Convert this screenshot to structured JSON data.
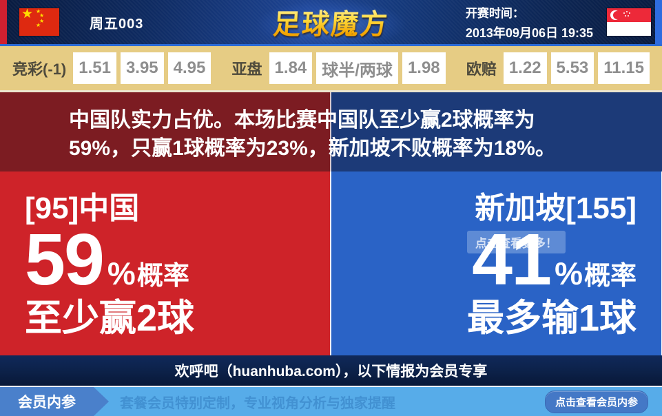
{
  "header": {
    "match_code": "周五003",
    "logo": "足球魔方",
    "kickoff_label": "开赛时间：",
    "kickoff_time": "2013年09月06日 19:35",
    "home_flag": "china-flag",
    "away_flag": "singapore-flag"
  },
  "odds_bar": {
    "groups": [
      {
        "label": "竞彩(-1)",
        "values": [
          "1.51",
          "3.95",
          "4.95"
        ]
      },
      {
        "label": "亚盘",
        "values": [
          "1.84",
          "球半/两球",
          "1.98"
        ]
      },
      {
        "label": "欧赔",
        "values": [
          "1.22",
          "5.53",
          "11.15"
        ]
      }
    ]
  },
  "analysis": {
    "line1": "中国队实力占优。本场比赛中国队至少赢2球概率为",
    "line2": "59%，只赢1球概率为23%，新加坡不败概率为18%。"
  },
  "home_panel": {
    "team": "[95]中国",
    "probability": "59",
    "percent_sign": "%",
    "probability_label": "概率",
    "outcome": "至少赢2球"
  },
  "away_panel": {
    "team": "新加坡[155]",
    "probability": "41",
    "percent_sign": "%",
    "probability_label": "概率",
    "outcome": "最多输1球",
    "watermark": "点击查看更多！"
  },
  "promo_bar": {
    "text": "欢呼吧（huanhuba.com），以下情报为会员专享"
  },
  "footer": {
    "tab": "会员内参",
    "subtitle": "套餐会员特别定制，专业视角分析与独家提醒",
    "button": "点击查看会员内参"
  },
  "colors": {
    "home_accent": "#ce2329",
    "away_accent": "#2a63c6",
    "banner_home": "#7c1c22",
    "banner_away": "#1c3a78",
    "odds_bg": "#e6cc84",
    "header_navy": "#0e2a60",
    "logo_gold": "#ffd93a",
    "footer_blue": "#57ace9",
    "footer_tab_blue": "#4a80cb"
  }
}
